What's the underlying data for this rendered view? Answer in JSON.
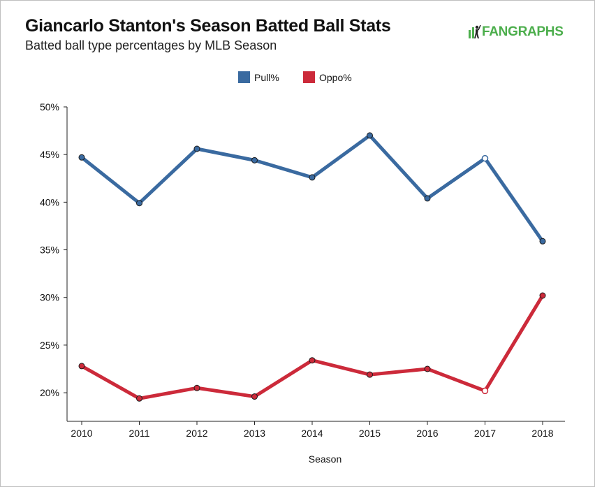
{
  "header": {
    "title": "Giancarlo Stanton's Season Batted Ball Stats",
    "subtitle": "Batted ball type percentages by MLB Season",
    "logo_text": "FANGRAPHS",
    "logo_color": "#4cae4c"
  },
  "chart_data": {
    "type": "line",
    "xlabel": "Season",
    "ylabel": "",
    "x": [
      2010,
      2011,
      2012,
      2013,
      2014,
      2015,
      2016,
      2017,
      2018
    ],
    "ylim": [
      17,
      50
    ],
    "yticks": [
      20,
      25,
      30,
      35,
      40,
      45,
      50
    ],
    "ytick_labels": [
      "20%",
      "25%",
      "30%",
      "35%",
      "40%",
      "45%",
      "50%"
    ],
    "grid": false,
    "legend_position": "top-center",
    "hollow_marker_index": 7,
    "series": [
      {
        "name": "Pull%",
        "color": "#3a6aa0",
        "values": [
          44.7,
          39.9,
          45.6,
          44.4,
          42.6,
          47.0,
          40.4,
          44.6,
          35.9
        ]
      },
      {
        "name": "Oppo%",
        "color": "#cc2a3a",
        "values": [
          22.8,
          19.4,
          20.5,
          19.6,
          23.4,
          21.9,
          22.5,
          20.2,
          30.2
        ]
      }
    ]
  }
}
